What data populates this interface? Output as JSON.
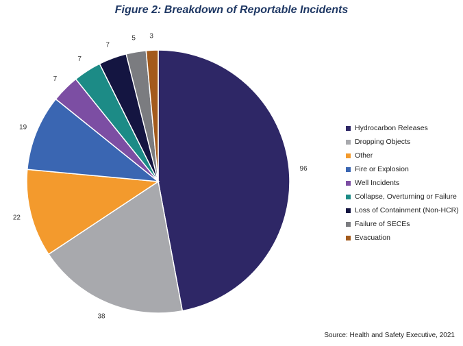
{
  "chart_data": {
    "type": "pie",
    "title": "Figure 2: Breakdown of Reportable Incidents",
    "source": "Source: Health and Safety Executive, 2021",
    "legend_position": "right",
    "slices": [
      {
        "label": "Hydrocarbon Releases",
        "value": 96,
        "color": "#2e2766"
      },
      {
        "label": "Dropping Objects",
        "value": 38,
        "color": "#a8a9ad"
      },
      {
        "label": "Other",
        "value": 22,
        "color": "#f39a2d"
      },
      {
        "label": "Fire or Explosion",
        "value": 19,
        "color": "#3a66b2"
      },
      {
        "label": "Well Incidents",
        "value": 7,
        "color": "#7c4ea3"
      },
      {
        "label": "Collapse, Overturning or Failure",
        "value": 7,
        "color": "#1c8b86"
      },
      {
        "label": "Loss of Containment (Non-HCR)",
        "value": 7,
        "color": "#141541"
      },
      {
        "label": "Failure of SECEs",
        "value": 5,
        "color": "#7b7c80"
      },
      {
        "label": "Evacuation",
        "value": 3,
        "color": "#a35a1c"
      }
    ]
  }
}
